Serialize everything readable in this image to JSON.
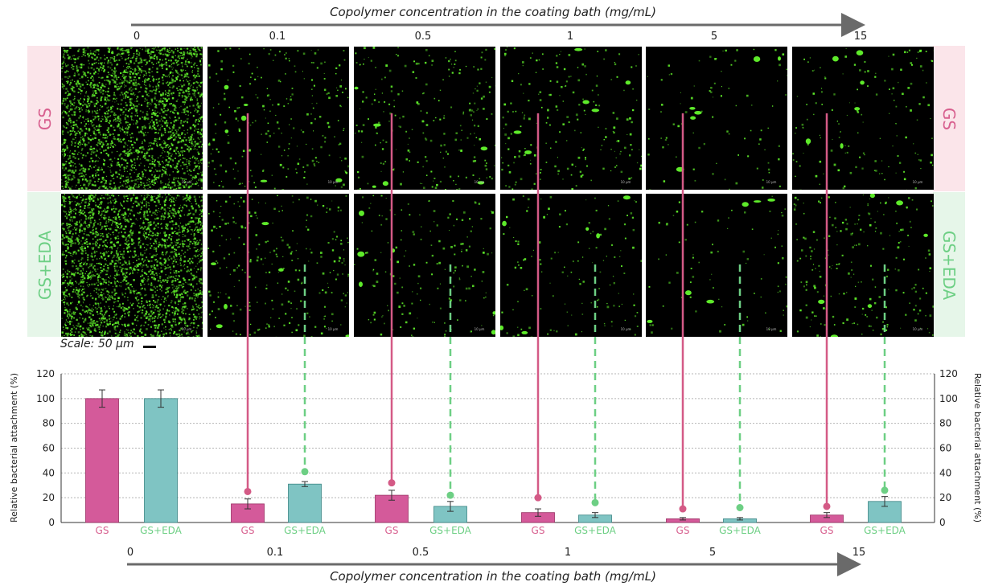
{
  "figure": {
    "top_axis_title": "Copolymer concentration in the coating bath (mg/mL)",
    "bottom_axis_title": "Copolymer concentration in the coating bath (mg/mL)",
    "concentrations": [
      "0",
      "0.1",
      "0.5",
      "1",
      "5",
      "15"
    ],
    "row_labels": {
      "gs": "GS",
      "gs_eda": "GS+EDA"
    },
    "scale_label": "Scale: 50 µm",
    "micrograph_scale_text": "10 µm",
    "colors": {
      "gs": "#d45a9a",
      "gs_eda": "#7fc4c3",
      "gs_label": "#d8608f",
      "eda_label": "#6dcf84",
      "fluor": "#5eea2a"
    }
  },
  "chart_data": {
    "type": "bar",
    "title": "",
    "ylabel": "Relative bacterial attachment (%)",
    "ylabel_right": "Relative bacterial attachment (%)",
    "xlabel": "Copolymer concentration in the coating bath (mg/mL)",
    "ylim": [
      0,
      120
    ],
    "yticks": [
      0,
      20,
      40,
      60,
      80,
      100,
      120
    ],
    "grid": true,
    "categories": [
      "0",
      "0.1",
      "0.5",
      "1",
      "5",
      "15"
    ],
    "series": [
      {
        "name": "GS",
        "values": [
          100,
          15,
          22,
          8,
          3,
          6
        ],
        "errors": [
          7,
          4,
          4,
          3,
          1,
          2
        ],
        "marker_values": [
          null,
          25,
          32,
          20,
          11,
          13
        ]
      },
      {
        "name": "GS+EDA",
        "values": [
          100,
          31,
          13,
          6,
          3,
          17
        ],
        "errors": [
          7,
          2,
          4,
          2,
          1,
          4
        ],
        "marker_values": [
          null,
          41,
          22,
          16,
          12,
          26
        ]
      }
    ]
  }
}
